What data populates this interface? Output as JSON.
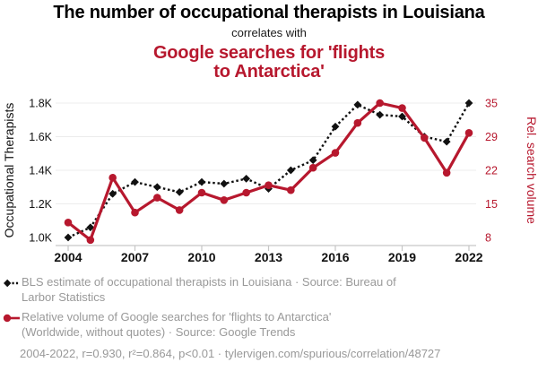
{
  "page": {
    "title_black": "The number of occupational therapists in Louisiana",
    "connector": "correlates with",
    "title_red_line1": "Google searches for 'flights",
    "title_red_line2": "to Antarctica'"
  },
  "colors": {
    "accent_red": "#b7182e",
    "series_black": "#111111",
    "legend_gray": "#999999",
    "grid_gray": "#ececec",
    "axis_gray": "#c6c6c6",
    "x_label_black": "#111111"
  },
  "chart_data": {
    "type": "line",
    "title": "The number of occupational therapists in Louisiana correlates with Google searches for 'flights to Antarctica'",
    "x": [
      2004,
      2005,
      2006,
      2007,
      2008,
      2009,
      2010,
      2011,
      2012,
      2013,
      2014,
      2015,
      2016,
      2017,
      2018,
      2019,
      2020,
      2021,
      2022
    ],
    "x_ticks": [
      "2004",
      "2007",
      "2010",
      "2013",
      "2016",
      "2019",
      "2022"
    ],
    "left_axis": {
      "label": "Occupational Therapists",
      "tick_labels": [
        "1.0K",
        "1.2K",
        "1.4K",
        "1.6K",
        "1.8K"
      ],
      "tick_values": [
        1000,
        1200,
        1400,
        1600,
        1800
      ],
      "range": [
        1000,
        1800
      ]
    },
    "right_axis": {
      "label": "Rel. search volume",
      "tick_labels": [
        "8",
        "15",
        "22",
        "29",
        "35"
      ],
      "tick_values": [
        8,
        15,
        22,
        29,
        35
      ],
      "range": [
        8,
        35
      ],
      "note": "right tick labels are aligned with left-axis gridlines"
    },
    "grid": "horizontal",
    "legend_position": "below",
    "series": [
      {
        "name": "BLS estimate of occupational therapists in Louisiana",
        "axis": "left",
        "style": "dashed-line-diamond-markers",
        "color": "#111111",
        "values": [
          1000,
          1060,
          1260,
          1330,
          1300,
          1270,
          1330,
          1320,
          1350,
          1290,
          1400,
          1460,
          1660,
          1790,
          1730,
          1720,
          1600,
          1570,
          1800
        ]
      },
      {
        "name": "Relative volume of Google searches for 'flights to Antarctica'",
        "axis": "right",
        "style": "solid-line-circle-markers",
        "color": "#b7182e",
        "values": [
          11,
          7.5,
          20,
          13,
          16,
          13.5,
          17,
          15.5,
          17,
          18.5,
          17.5,
          22,
          25,
          31,
          35,
          34,
          28,
          21,
          29
        ]
      }
    ]
  },
  "legend": {
    "items": [
      {
        "marker": "black-diamond-dashed",
        "lines": [
          "BLS estimate of occupational therapists in Louisiana · Source: Bureau of",
          "Larbor Statistics"
        ]
      },
      {
        "marker": "red-circle-solid",
        "lines": [
          "Relative volume of Google searches for 'flights to Antarctica'",
          "(Worldwide, without quotes) · Source: Google Trends"
        ]
      }
    ]
  },
  "footer": {
    "text": "2004-2022, r=0.930, r²=0.864, p<0.01 · tylervigen.com/spurious/correlation/48727"
  }
}
